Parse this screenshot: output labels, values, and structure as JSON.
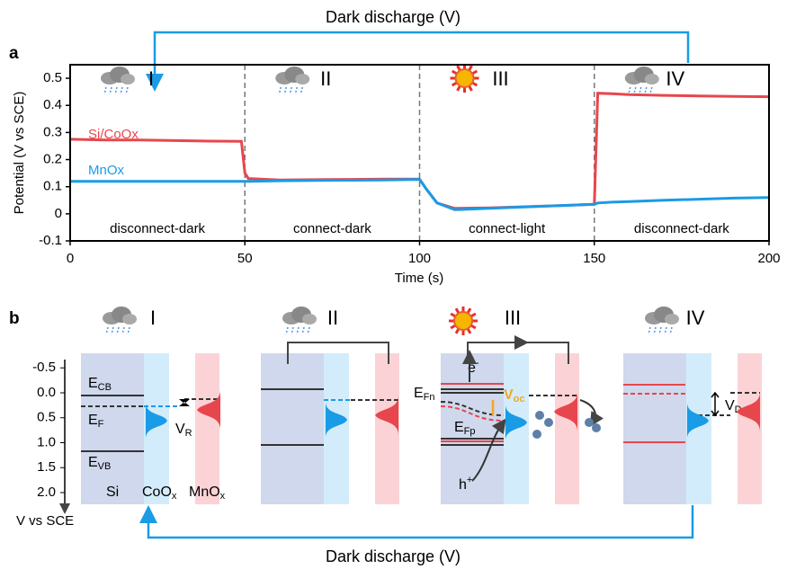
{
  "top_arrow_label": "Dark discharge (V)",
  "bottom_arrow_label": "Dark discharge (V)",
  "chart_data": {
    "type": "line",
    "panel_label": "a",
    "x_label": "Time (s)",
    "y_label": "Potential (V vs SCE)",
    "xlim": [
      0,
      200
    ],
    "xticks": [
      0,
      50,
      100,
      150,
      200
    ],
    "ylim": [
      -0.1,
      0.55
    ],
    "yticks": [
      -0.1,
      0,
      0.1,
      0.2,
      0.3,
      0.4,
      0.5
    ],
    "phase_boundaries": [
      50,
      100,
      150
    ],
    "phases": [
      {
        "numeral": "I",
        "label": "disconnect-dark"
      },
      {
        "numeral": "II",
        "label": "connect-dark"
      },
      {
        "numeral": "III",
        "label": "connect-light"
      },
      {
        "numeral": "IV",
        "label": "disconnect-dark"
      }
    ],
    "x": [
      0,
      10,
      20,
      30,
      40,
      49,
      50,
      51,
      60,
      70,
      80,
      90,
      100,
      102,
      105,
      110,
      120,
      130,
      140,
      150,
      151,
      155,
      160,
      170,
      180,
      190,
      200
    ],
    "series": [
      {
        "name": "Si/CoOx",
        "color": "#e8464d",
        "values": [
          0.275,
          0.272,
          0.272,
          0.27,
          0.268,
          0.267,
          0.15,
          0.13,
          0.125,
          0.126,
          0.127,
          0.128,
          0.128,
          0.09,
          0.04,
          0.02,
          0.022,
          0.026,
          0.03,
          0.035,
          0.445,
          0.443,
          0.44,
          0.437,
          0.435,
          0.433,
          0.432
        ]
      },
      {
        "name": "MnOx",
        "color": "#1a9be6",
        "values": [
          0.12,
          0.12,
          0.12,
          0.12,
          0.12,
          0.12,
          0.12,
          0.12,
          0.122,
          0.123,
          0.124,
          0.125,
          0.127,
          0.09,
          0.04,
          0.015,
          0.02,
          0.025,
          0.03,
          0.035,
          0.04,
          0.043,
          0.045,
          0.05,
          0.054,
          0.058,
          0.06
        ]
      }
    ]
  },
  "diagram": {
    "panel_label": "b",
    "axis_label": "V vs SCE",
    "yticks": [
      {
        "value": -0.5,
        "label": "-0.5"
      },
      {
        "value": 0,
        "label": "0.0"
      },
      {
        "value": 0.5,
        "label": "0.5"
      },
      {
        "value": 1,
        "label": "1.0"
      },
      {
        "value": 1.5,
        "label": "1.5"
      },
      {
        "value": 2,
        "label": "2.0"
      }
    ],
    "panels": [
      {
        "numeral": "I"
      },
      {
        "numeral": "II"
      },
      {
        "numeral": "III"
      },
      {
        "numeral": "IV"
      }
    ],
    "labels": {
      "ecb": {
        "text": "E",
        "sub": "CB"
      },
      "ef": {
        "text": "E",
        "sub": "F"
      },
      "evb": {
        "text": "E",
        "sub": "VB"
      },
      "vr": {
        "text": "V",
        "sub": "R"
      },
      "si": "Si",
      "coox": {
        "text": "CoO",
        "sub": "x"
      },
      "mnox": {
        "text": "MnO",
        "sub": "x"
      },
      "efn": {
        "text": "E",
        "sub": "Fn"
      },
      "efp": {
        "text": "E",
        "sub": "Fp"
      },
      "voc": {
        "text": "V",
        "sub": "oc"
      },
      "e": {
        "text": "e",
        "sup": "-"
      },
      "h": {
        "text": "h",
        "sup": "+"
      },
      "vd": {
        "text": "V",
        "sub": "D"
      }
    }
  }
}
